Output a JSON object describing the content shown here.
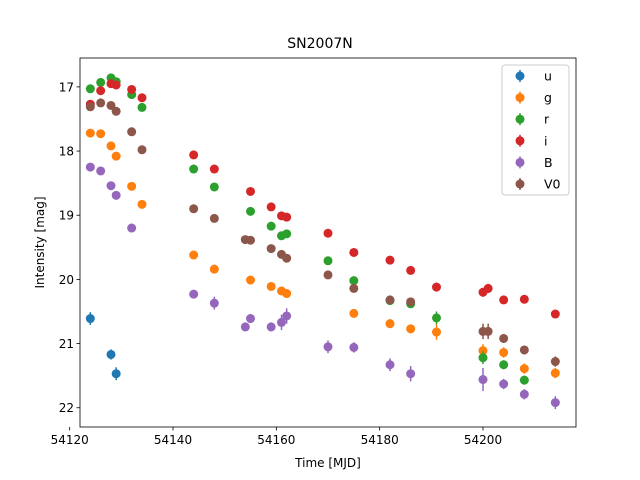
{
  "chart_data": {
    "type": "scatter",
    "title": "SN2007N",
    "xlabel": "Time [MJD]",
    "ylabel": "Intensity [mag]",
    "xlim": [
      54122,
      54218
    ],
    "ylim": [
      22.3,
      16.55
    ],
    "y_inverted": true,
    "x_ticks": [
      54120,
      54140,
      54160,
      54180,
      54200
    ],
    "y_ticks": [
      17,
      18,
      19,
      20,
      21,
      22
    ],
    "grid": false,
    "legend_position": "top-right",
    "series": [
      {
        "name": "u",
        "color": "#1f77b4",
        "points": [
          {
            "x": 54124.0,
            "y": 20.61,
            "err": 0.1
          },
          {
            "x": 54128.0,
            "y": 21.17,
            "err": 0.08
          },
          {
            "x": 54129.0,
            "y": 21.47,
            "err": 0.1
          }
        ]
      },
      {
        "name": "g",
        "color": "#ff7f0e",
        "points": [
          {
            "x": 54124.0,
            "y": 17.72,
            "err": 0.03
          },
          {
            "x": 54126.0,
            "y": 17.73,
            "err": 0.03
          },
          {
            "x": 54128.0,
            "y": 17.92,
            "err": 0.03
          },
          {
            "x": 54129.0,
            "y": 18.08,
            "err": 0.03
          },
          {
            "x": 54132.0,
            "y": 18.55,
            "err": 0.04
          },
          {
            "x": 54134.0,
            "y": 18.83,
            "err": 0.04
          },
          {
            "x": 54144.0,
            "y": 19.62,
            "err": 0.05
          },
          {
            "x": 54148.0,
            "y": 19.84,
            "err": 0.05
          },
          {
            "x": 54155.0,
            "y": 20.01,
            "err": 0.05
          },
          {
            "x": 54159.0,
            "y": 20.11,
            "err": 0.05
          },
          {
            "x": 54161.0,
            "y": 20.18,
            "err": 0.05
          },
          {
            "x": 54162.0,
            "y": 20.22,
            "err": 0.05
          },
          {
            "x": 54175.0,
            "y": 20.53,
            "err": 0.06
          },
          {
            "x": 54182.0,
            "y": 20.69,
            "err": 0.07
          },
          {
            "x": 54186.0,
            "y": 20.77,
            "err": 0.07
          },
          {
            "x": 54191.0,
            "y": 20.82,
            "err": 0.12
          },
          {
            "x": 54200.0,
            "y": 21.11,
            "err": 0.1
          },
          {
            "x": 54204.0,
            "y": 21.14,
            "err": 0.08
          },
          {
            "x": 54208.0,
            "y": 21.39,
            "err": 0.08
          },
          {
            "x": 54214.0,
            "y": 21.46,
            "err": 0.08
          }
        ]
      },
      {
        "name": "r",
        "color": "#2ca02c",
        "points": [
          {
            "x": 54124.0,
            "y": 17.03,
            "err": 0.02
          },
          {
            "x": 54126.0,
            "y": 16.93,
            "err": 0.02
          },
          {
            "x": 54128.0,
            "y": 16.86,
            "err": 0.02
          },
          {
            "x": 54129.0,
            "y": 16.92,
            "err": 0.02
          },
          {
            "x": 54132.0,
            "y": 17.12,
            "err": 0.02
          },
          {
            "x": 54134.0,
            "y": 17.32,
            "err": 0.03
          },
          {
            "x": 54144.0,
            "y": 18.28,
            "err": 0.03
          },
          {
            "x": 54148.0,
            "y": 18.56,
            "err": 0.03
          },
          {
            "x": 54155.0,
            "y": 18.94,
            "err": 0.03
          },
          {
            "x": 54159.0,
            "y": 19.17,
            "err": 0.03
          },
          {
            "x": 54161.0,
            "y": 19.32,
            "err": 0.04
          },
          {
            "x": 54162.0,
            "y": 19.29,
            "err": 0.04
          },
          {
            "x": 54170.0,
            "y": 19.71,
            "err": 0.04
          },
          {
            "x": 54175.0,
            "y": 20.02,
            "err": 0.04
          },
          {
            "x": 54182.0,
            "y": 20.33,
            "err": 0.05
          },
          {
            "x": 54186.0,
            "y": 20.38,
            "err": 0.05
          },
          {
            "x": 54191.0,
            "y": 20.6,
            "err": 0.1
          },
          {
            "x": 54200.0,
            "y": 21.22,
            "err": 0.1
          },
          {
            "x": 54204.0,
            "y": 21.33,
            "err": 0.07
          },
          {
            "x": 54208.0,
            "y": 21.57,
            "err": 0.07
          }
        ]
      },
      {
        "name": "i",
        "color": "#d62728",
        "points": [
          {
            "x": 54124.0,
            "y": 17.27,
            "err": 0.02
          },
          {
            "x": 54126.0,
            "y": 17.06,
            "err": 0.02
          },
          {
            "x": 54128.0,
            "y": 16.95,
            "err": 0.02
          },
          {
            "x": 54129.0,
            "y": 16.97,
            "err": 0.02
          },
          {
            "x": 54132.0,
            "y": 17.04,
            "err": 0.02
          },
          {
            "x": 54134.0,
            "y": 17.17,
            "err": 0.02
          },
          {
            "x": 54144.0,
            "y": 18.06,
            "err": 0.03
          },
          {
            "x": 54148.0,
            "y": 18.28,
            "err": 0.03
          },
          {
            "x": 54155.0,
            "y": 18.63,
            "err": 0.03
          },
          {
            "x": 54159.0,
            "y": 18.87,
            "err": 0.03
          },
          {
            "x": 54161.0,
            "y": 19.01,
            "err": 0.03
          },
          {
            "x": 54162.0,
            "y": 19.03,
            "err": 0.03
          },
          {
            "x": 54170.0,
            "y": 19.28,
            "err": 0.04
          },
          {
            "x": 54175.0,
            "y": 19.58,
            "err": 0.04
          },
          {
            "x": 54182.0,
            "y": 19.7,
            "err": 0.04
          },
          {
            "x": 54186.0,
            "y": 19.86,
            "err": 0.05
          },
          {
            "x": 54191.0,
            "y": 20.12,
            "err": 0.07
          },
          {
            "x": 54200.0,
            "y": 20.2,
            "err": 0.07
          },
          {
            "x": 54201.0,
            "y": 20.14,
            "err": 0.07
          },
          {
            "x": 54204.0,
            "y": 20.32,
            "err": 0.05
          },
          {
            "x": 54208.0,
            "y": 20.31,
            "err": 0.05
          },
          {
            "x": 54214.0,
            "y": 20.54,
            "err": 0.05
          }
        ]
      },
      {
        "name": "B",
        "color": "#9467bd",
        "points": [
          {
            "x": 54124.0,
            "y": 18.25,
            "err": 0.03
          },
          {
            "x": 54126.0,
            "y": 18.31,
            "err": 0.03
          },
          {
            "x": 54128.0,
            "y": 18.54,
            "err": 0.03
          },
          {
            "x": 54129.0,
            "y": 18.69,
            "err": 0.03
          },
          {
            "x": 54132.0,
            "y": 19.2,
            "err": 0.04
          },
          {
            "x": 54144.0,
            "y": 20.23,
            "err": 0.06
          },
          {
            "x": 54148.0,
            "y": 20.37,
            "err": 0.1
          },
          {
            "x": 54154.0,
            "y": 20.74,
            "err": 0.07
          },
          {
            "x": 54155.0,
            "y": 20.61,
            "err": 0.07
          },
          {
            "x": 54159.0,
            "y": 20.74,
            "err": 0.07
          },
          {
            "x": 54161.0,
            "y": 20.67,
            "err": 0.12
          },
          {
            "x": 54162.0,
            "y": 20.57,
            "err": 0.12
          },
          {
            "x": 54170.0,
            "y": 21.05,
            "err": 0.1
          },
          {
            "x": 54175.0,
            "y": 21.06,
            "err": 0.08
          },
          {
            "x": 54182.0,
            "y": 21.33,
            "err": 0.1
          },
          {
            "x": 54186.0,
            "y": 21.47,
            "err": 0.12
          },
          {
            "x": 54200.0,
            "y": 21.56,
            "err": 0.18
          },
          {
            "x": 54204.0,
            "y": 21.63,
            "err": 0.08
          },
          {
            "x": 54208.0,
            "y": 21.79,
            "err": 0.08
          },
          {
            "x": 54214.0,
            "y": 21.92,
            "err": 0.1
          }
        ]
      },
      {
        "name": "V0",
        "color": "#8c564b",
        "points": [
          {
            "x": 54124.0,
            "y": 17.31,
            "err": 0.02
          },
          {
            "x": 54126.0,
            "y": 17.25,
            "err": 0.02
          },
          {
            "x": 54128.0,
            "y": 17.29,
            "err": 0.02
          },
          {
            "x": 54129.0,
            "y": 17.38,
            "err": 0.02
          },
          {
            "x": 54132.0,
            "y": 17.7,
            "err": 0.03
          },
          {
            "x": 54134.0,
            "y": 17.98,
            "err": 0.03
          },
          {
            "x": 54144.0,
            "y": 18.9,
            "err": 0.04
          },
          {
            "x": 54148.0,
            "y": 19.05,
            "err": 0.04
          },
          {
            "x": 54154.0,
            "y": 19.38,
            "err": 0.04
          },
          {
            "x": 54155.0,
            "y": 19.39,
            "err": 0.04
          },
          {
            "x": 54159.0,
            "y": 19.52,
            "err": 0.04
          },
          {
            "x": 54161.0,
            "y": 19.61,
            "err": 0.04
          },
          {
            "x": 54162.0,
            "y": 19.67,
            "err": 0.04
          },
          {
            "x": 54170.0,
            "y": 19.93,
            "err": 0.05
          },
          {
            "x": 54175.0,
            "y": 20.14,
            "err": 0.05
          },
          {
            "x": 54182.0,
            "y": 20.32,
            "err": 0.06
          },
          {
            "x": 54186.0,
            "y": 20.35,
            "err": 0.06
          },
          {
            "x": 54200.0,
            "y": 20.81,
            "err": 0.12
          },
          {
            "x": 54201.0,
            "y": 20.81,
            "err": 0.12
          },
          {
            "x": 54204.0,
            "y": 20.92,
            "err": 0.07
          },
          {
            "x": 54208.0,
            "y": 21.1,
            "err": 0.07
          },
          {
            "x": 54214.0,
            "y": 21.28,
            "err": 0.08
          }
        ]
      }
    ]
  }
}
